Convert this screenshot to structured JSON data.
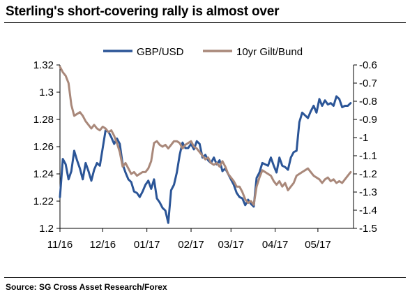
{
  "title": "Sterling's short-covering rally is almost over",
  "source": "Source: SG Cross Asset Research/Forex",
  "chart_data": {
    "type": "line",
    "title": "Sterling's short-covering rally is almost over",
    "x_tick_labels": [
      "11/16",
      "12/16",
      "01/17",
      "02/17",
      "03/17",
      "04/17",
      "05/17"
    ],
    "y_left": {
      "ylim": [
        1.2,
        1.32
      ],
      "ticks": [
        "1.2",
        "1.22",
        "1.24",
        "1.26",
        "1.28",
        "1.3",
        "1.32"
      ]
    },
    "y_right": {
      "ylim": [
        -1.5,
        -0.6
      ],
      "ticks": [
        "-0.6",
        "-0.7",
        "-0.8",
        "-0.9",
        "-1",
        "-1.1",
        "-1.2",
        "-1.3",
        "-1.4",
        "-1.5"
      ]
    },
    "legend_position": "top-center",
    "series": [
      {
        "name": "GBP/USD",
        "axis": "left",
        "color": "#2b5597",
        "points": [
          [
            "2016-11-01",
            1.223
          ],
          [
            "2016-11-03",
            1.251
          ],
          [
            "2016-11-05",
            1.247
          ],
          [
            "2016-11-07",
            1.236
          ],
          [
            "2016-11-09",
            1.242
          ],
          [
            "2016-11-11",
            1.257
          ],
          [
            "2016-11-13",
            1.25
          ],
          [
            "2016-11-15",
            1.244
          ],
          [
            "2016-11-17",
            1.236
          ],
          [
            "2016-11-19",
            1.248
          ],
          [
            "2016-11-21",
            1.242
          ],
          [
            "2016-11-23",
            1.235
          ],
          [
            "2016-11-25",
            1.243
          ],
          [
            "2016-11-27",
            1.248
          ],
          [
            "2016-11-29",
            1.246
          ],
          [
            "2016-12-01",
            1.259
          ],
          [
            "2016-12-03",
            1.272
          ],
          [
            "2016-12-05",
            1.271
          ],
          [
            "2016-12-07",
            1.267
          ],
          [
            "2016-12-09",
            1.262
          ],
          [
            "2016-12-11",
            1.266
          ],
          [
            "2016-12-13",
            1.262
          ],
          [
            "2016-12-15",
            1.247
          ],
          [
            "2016-12-17",
            1.241
          ],
          [
            "2016-12-19",
            1.236
          ],
          [
            "2016-12-21",
            1.234
          ],
          [
            "2016-12-23",
            1.227
          ],
          [
            "2016-12-25",
            1.226
          ],
          [
            "2016-12-27",
            1.223
          ],
          [
            "2016-12-29",
            1.227
          ],
          [
            "2016-12-31",
            1.232
          ],
          [
            "2017-01-02",
            1.235
          ],
          [
            "2017-01-04",
            1.229
          ],
          [
            "2017-01-06",
            1.236
          ],
          [
            "2017-01-08",
            1.222
          ],
          [
            "2017-01-10",
            1.219
          ],
          [
            "2017-01-12",
            1.215
          ],
          [
            "2017-01-14",
            1.213
          ],
          [
            "2017-01-16",
            1.204
          ],
          [
            "2017-01-18",
            1.228
          ],
          [
            "2017-01-20",
            1.232
          ],
          [
            "2017-01-22",
            1.241
          ],
          [
            "2017-01-24",
            1.254
          ],
          [
            "2017-01-26",
            1.263
          ],
          [
            "2017-01-28",
            1.259
          ],
          [
            "2017-01-30",
            1.259
          ],
          [
            "2017-02-01",
            1.262
          ],
          [
            "2017-02-03",
            1.258
          ],
          [
            "2017-02-05",
            1.264
          ],
          [
            "2017-02-07",
            1.262
          ],
          [
            "2017-02-09",
            1.252
          ],
          [
            "2017-02-11",
            1.254
          ],
          [
            "2017-02-13",
            1.25
          ],
          [
            "2017-02-15",
            1.248
          ],
          [
            "2017-02-17",
            1.252
          ],
          [
            "2017-02-19",
            1.247
          ],
          [
            "2017-02-21",
            1.25
          ],
          [
            "2017-02-23",
            1.242
          ],
          [
            "2017-02-25",
            1.244
          ],
          [
            "2017-02-27",
            1.24
          ],
          [
            "2017-03-01",
            1.236
          ],
          [
            "2017-03-03",
            1.232
          ],
          [
            "2017-03-05",
            1.226
          ],
          [
            "2017-03-07",
            1.223
          ],
          [
            "2017-03-09",
            1.222
          ],
          [
            "2017-03-11",
            1.217
          ],
          [
            "2017-03-13",
            1.221
          ],
          [
            "2017-03-15",
            1.218
          ],
          [
            "2017-03-17",
            1.216
          ],
          [
            "2017-03-19",
            1.237
          ],
          [
            "2017-03-21",
            1.241
          ],
          [
            "2017-03-23",
            1.248
          ],
          [
            "2017-03-25",
            1.247
          ],
          [
            "2017-03-27",
            1.246
          ],
          [
            "2017-03-29",
            1.252
          ],
          [
            "2017-03-31",
            1.246
          ],
          [
            "2017-04-02",
            1.241
          ],
          [
            "2017-04-04",
            1.252
          ],
          [
            "2017-04-06",
            1.246
          ],
          [
            "2017-04-08",
            1.245
          ],
          [
            "2017-04-10",
            1.243
          ],
          [
            "2017-04-12",
            1.252
          ],
          [
            "2017-04-14",
            1.256
          ],
          [
            "2017-04-16",
            1.257
          ],
          [
            "2017-04-18",
            1.278
          ],
          [
            "2017-04-20",
            1.285
          ],
          [
            "2017-04-22",
            1.283
          ],
          [
            "2017-04-24",
            1.281
          ],
          [
            "2017-04-26",
            1.286
          ],
          [
            "2017-04-28",
            1.29
          ],
          [
            "2017-04-30",
            1.285
          ],
          [
            "2017-05-02",
            1.295
          ],
          [
            "2017-05-04",
            1.29
          ],
          [
            "2017-05-06",
            1.294
          ],
          [
            "2017-05-08",
            1.291
          ],
          [
            "2017-05-10",
            1.292
          ],
          [
            "2017-05-12",
            1.29
          ],
          [
            "2017-05-14",
            1.297
          ],
          [
            "2017-05-16",
            1.295
          ],
          [
            "2017-05-18",
            1.289
          ],
          [
            "2017-05-20",
            1.29
          ],
          [
            "2017-05-22",
            1.29
          ],
          [
            "2017-05-24",
            1.292
          ]
        ]
      },
      {
        "name": "10yr Gilt/Bund",
        "axis": "right",
        "color": "#a9887a",
        "points": [
          [
            "2016-11-01",
            -0.61
          ],
          [
            "2016-11-03",
            -0.64
          ],
          [
            "2016-11-05",
            -0.66
          ],
          [
            "2016-11-07",
            -0.7
          ],
          [
            "2016-11-09",
            -0.82
          ],
          [
            "2016-11-11",
            -0.88
          ],
          [
            "2016-11-13",
            -0.87
          ],
          [
            "2016-11-15",
            -0.86
          ],
          [
            "2016-11-17",
            -0.88
          ],
          [
            "2016-11-19",
            -0.91
          ],
          [
            "2016-11-21",
            -0.93
          ],
          [
            "2016-11-23",
            -0.95
          ],
          [
            "2016-11-25",
            -0.93
          ],
          [
            "2016-11-27",
            -0.95
          ],
          [
            "2016-11-29",
            -0.96
          ],
          [
            "2016-12-01",
            -0.94
          ],
          [
            "2016-12-03",
            -0.95
          ],
          [
            "2016-12-05",
            -0.97
          ],
          [
            "2016-12-07",
            -0.96
          ],
          [
            "2016-12-09",
            -0.99
          ],
          [
            "2016-12-11",
            -1.03
          ],
          [
            "2016-12-13",
            -1.08
          ],
          [
            "2016-12-15",
            -1.16
          ],
          [
            "2016-12-17",
            -1.14
          ],
          [
            "2016-12-19",
            -1.17
          ],
          [
            "2016-12-21",
            -1.2
          ],
          [
            "2016-12-23",
            -1.19
          ],
          [
            "2016-12-25",
            -1.21
          ],
          [
            "2016-12-27",
            -1.2
          ],
          [
            "2016-12-29",
            -1.19
          ],
          [
            "2016-12-31",
            -1.19
          ],
          [
            "2017-01-02",
            -1.17
          ],
          [
            "2017-01-04",
            -1.13
          ],
          [
            "2017-01-06",
            -1.03
          ],
          [
            "2017-01-08",
            -1.02
          ],
          [
            "2017-01-10",
            -1.04
          ],
          [
            "2017-01-12",
            -1.05
          ],
          [
            "2017-01-14",
            -1.04
          ],
          [
            "2017-01-16",
            -1.06
          ],
          [
            "2017-01-18",
            -1.04
          ],
          [
            "2017-01-20",
            -1.02
          ],
          [
            "2017-01-22",
            -1.02
          ],
          [
            "2017-01-24",
            -1.03
          ],
          [
            "2017-01-26",
            -1.06
          ],
          [
            "2017-01-28",
            -1.04
          ],
          [
            "2017-01-30",
            -1.03
          ],
          [
            "2017-02-01",
            -1.02
          ],
          [
            "2017-02-03",
            -1.05
          ],
          [
            "2017-02-05",
            -1.06
          ],
          [
            "2017-02-07",
            -1.08
          ],
          [
            "2017-02-09",
            -1.1
          ],
          [
            "2017-02-11",
            -1.12
          ],
          [
            "2017-02-13",
            -1.11
          ],
          [
            "2017-02-15",
            -1.14
          ],
          [
            "2017-02-17",
            -1.15
          ],
          [
            "2017-02-19",
            -1.14
          ],
          [
            "2017-02-21",
            -1.16
          ],
          [
            "2017-02-23",
            -1.13
          ],
          [
            "2017-02-25",
            -1.16
          ],
          [
            "2017-02-27",
            -1.2
          ],
          [
            "2017-03-01",
            -1.22
          ],
          [
            "2017-03-03",
            -1.24
          ],
          [
            "2017-03-05",
            -1.27
          ],
          [
            "2017-03-07",
            -1.27
          ],
          [
            "2017-03-09",
            -1.3
          ],
          [
            "2017-03-11",
            -1.34
          ],
          [
            "2017-03-13",
            -1.36
          ],
          [
            "2017-03-15",
            -1.35
          ],
          [
            "2017-03-17",
            -1.37
          ],
          [
            "2017-03-19",
            -1.27
          ],
          [
            "2017-03-21",
            -1.22
          ],
          [
            "2017-03-23",
            -1.18
          ],
          [
            "2017-03-25",
            -1.19
          ],
          [
            "2017-03-27",
            -1.2
          ],
          [
            "2017-03-29",
            -1.21
          ],
          [
            "2017-03-31",
            -1.24
          ],
          [
            "2017-04-02",
            -1.26
          ],
          [
            "2017-04-04",
            -1.24
          ],
          [
            "2017-04-06",
            -1.27
          ],
          [
            "2017-04-08",
            -1.25
          ],
          [
            "2017-04-10",
            -1.29
          ],
          [
            "2017-04-12",
            -1.27
          ],
          [
            "2017-04-14",
            -1.25
          ],
          [
            "2017-04-16",
            -1.21
          ],
          [
            "2017-04-18",
            -1.2
          ],
          [
            "2017-04-20",
            -1.19
          ],
          [
            "2017-04-22",
            -1.18
          ],
          [
            "2017-04-24",
            -1.17
          ],
          [
            "2017-04-26",
            -1.19
          ],
          [
            "2017-04-28",
            -1.21
          ],
          [
            "2017-04-30",
            -1.22
          ],
          [
            "2017-05-02",
            -1.23
          ],
          [
            "2017-05-04",
            -1.25
          ],
          [
            "2017-05-06",
            -1.23
          ],
          [
            "2017-05-08",
            -1.22
          ],
          [
            "2017-05-10",
            -1.24
          ],
          [
            "2017-05-12",
            -1.23
          ],
          [
            "2017-05-14",
            -1.25
          ],
          [
            "2017-05-16",
            -1.24
          ],
          [
            "2017-05-18",
            -1.25
          ],
          [
            "2017-05-20",
            -1.23
          ],
          [
            "2017-05-22",
            -1.21
          ],
          [
            "2017-05-24",
            -1.19
          ]
        ]
      }
    ]
  }
}
